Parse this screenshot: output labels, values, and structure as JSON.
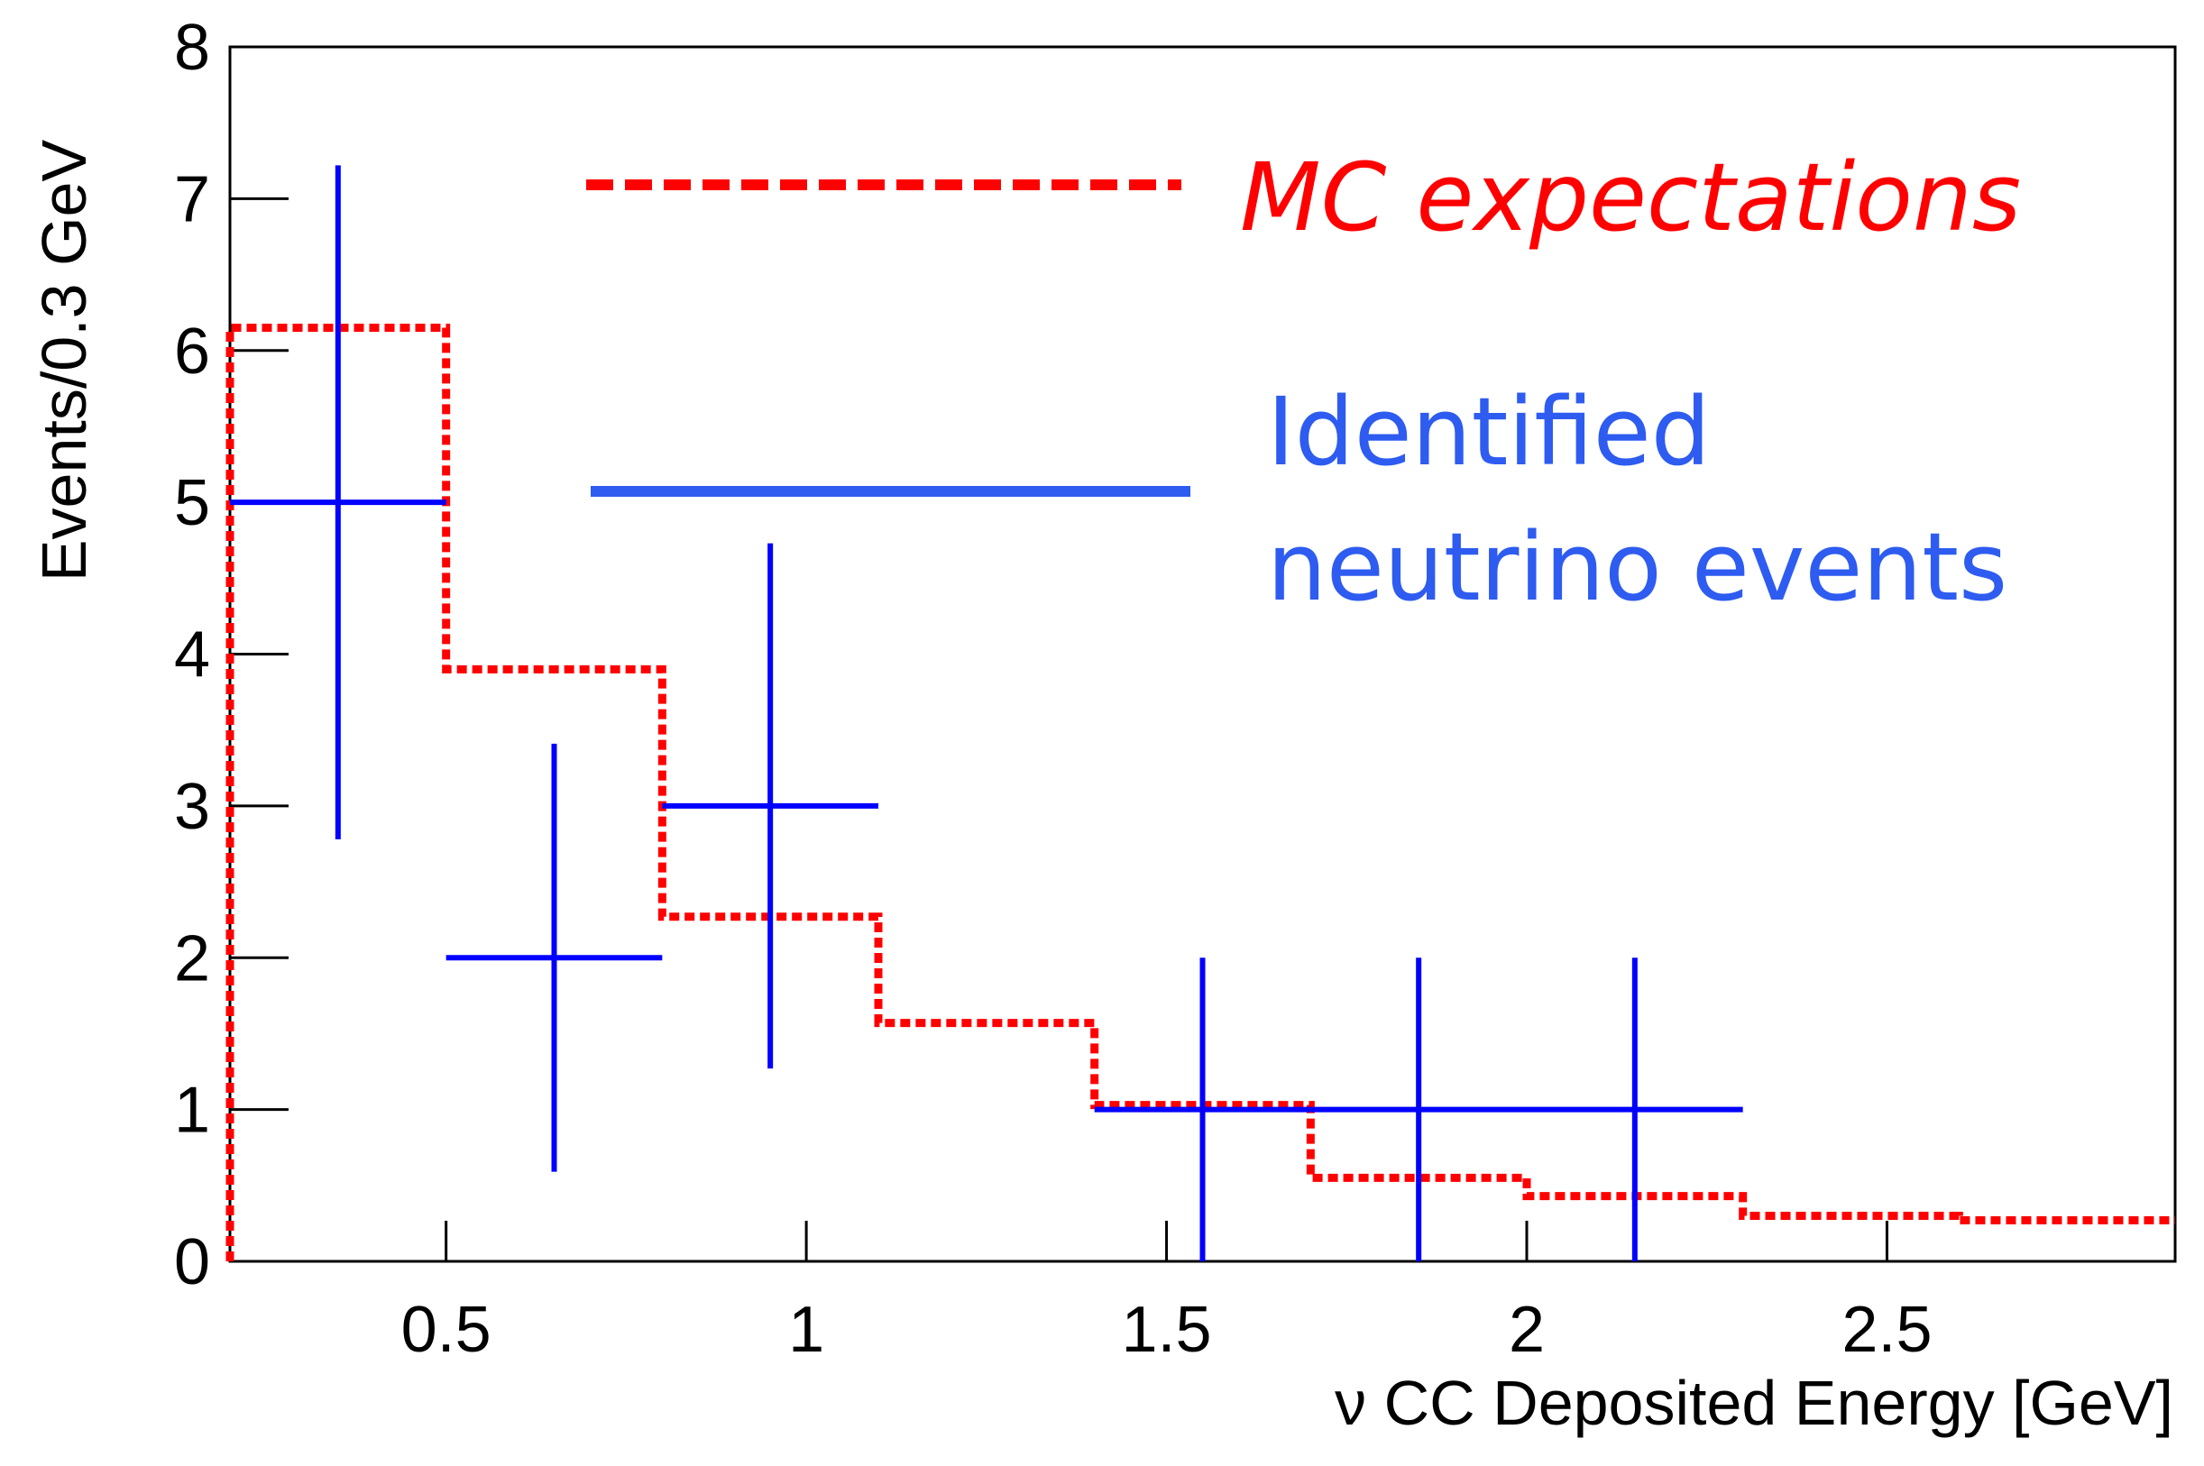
{
  "chart_data": {
    "type": "line",
    "title": "",
    "xlabel": "ν CC Deposited Energy [GeV]",
    "ylabel": "Events/0.3 GeV",
    "xlim": [
      0.2,
      2.9
    ],
    "ylim": [
      0,
      8
    ],
    "x_ticks": [
      0.5,
      1,
      1.5,
      2,
      2.5
    ],
    "x_tick_labels": [
      "0.5",
      "1",
      "1.5",
      "2",
      "2.5"
    ],
    "y_ticks": [
      0,
      1,
      2,
      3,
      4,
      5,
      6,
      7,
      8
    ],
    "y_tick_labels": [
      "0",
      "1",
      "2",
      "3",
      "4",
      "5",
      "6",
      "7",
      "8"
    ],
    "legend": [
      {
        "label": "MC expectations",
        "color": "#ff0000",
        "style": "dashed"
      },
      {
        "label_line1": "Identified",
        "label_line2": "neutrino events",
        "color": "#2e5cf0",
        "style": "solid"
      }
    ],
    "series": [
      {
        "name": "MC expectations",
        "kind": "step-histogram",
        "color": "#ff0000",
        "bin_edges": [
          0.2,
          0.5,
          0.8,
          1.1,
          1.4,
          1.7,
          2.0,
          2.3,
          2.6,
          2.9
        ],
        "values": [
          6.15,
          3.9,
          2.27,
          1.57,
          1.03,
          0.55,
          0.43,
          0.3,
          0.27
        ]
      },
      {
        "name": "Identified neutrino events",
        "kind": "points-with-errors",
        "color": "#0000ff",
        "points": [
          {
            "x": 0.35,
            "x_low": 0.2,
            "x_high": 0.5,
            "y": 5,
            "y_low": 2.78,
            "y_high": 7.22
          },
          {
            "x": 0.65,
            "x_low": 0.5,
            "x_high": 0.8,
            "y": 2,
            "y_low": 0.59,
            "y_high": 3.41
          },
          {
            "x": 0.95,
            "x_low": 0.8,
            "x_high": 1.1,
            "y": 3,
            "y_low": 1.27,
            "y_high": 4.73
          },
          {
            "x": 1.55,
            "x_low": 1.4,
            "x_high": 1.7,
            "y": 1,
            "y_low": 0,
            "y_high": 2
          },
          {
            "x": 1.85,
            "x_low": 1.7,
            "x_high": 2.0,
            "y": 1,
            "y_low": 0,
            "y_high": 2
          },
          {
            "x": 2.15,
            "x_low": 2.0,
            "x_high": 2.3,
            "y": 1,
            "y_low": 0,
            "y_high": 2
          }
        ]
      }
    ]
  }
}
